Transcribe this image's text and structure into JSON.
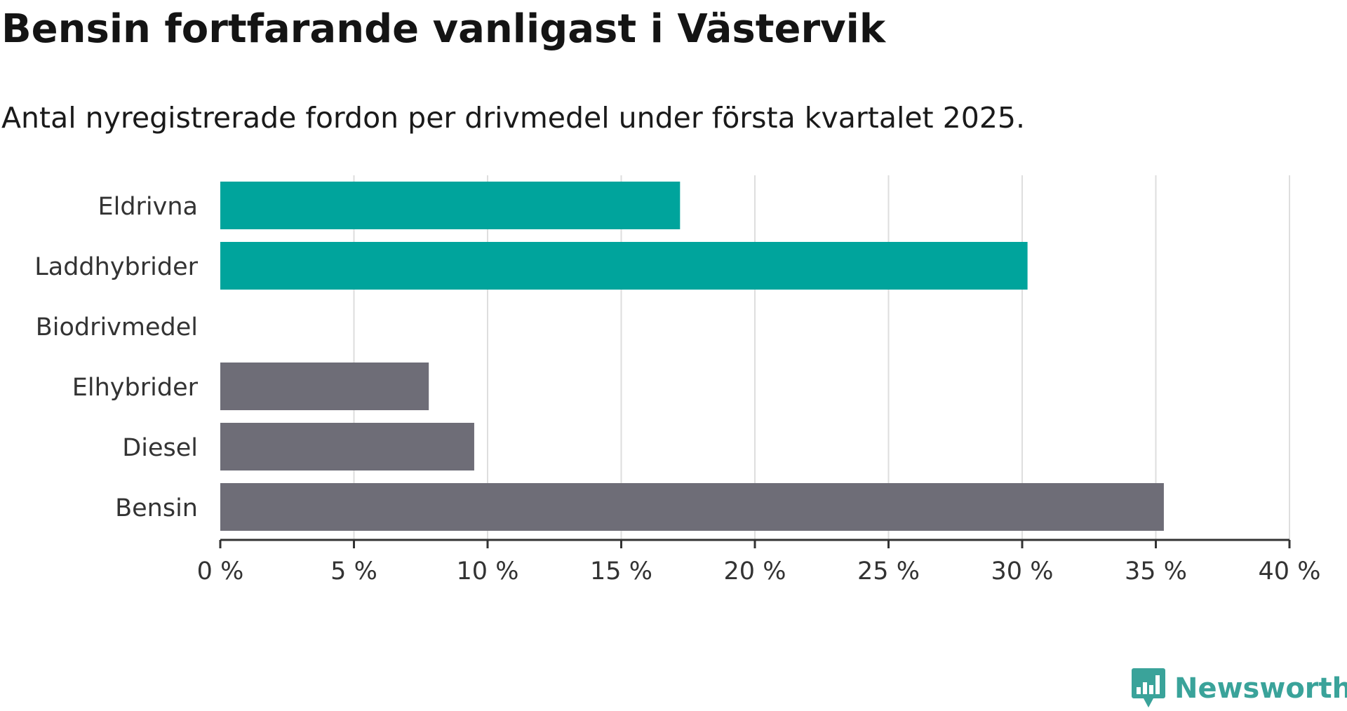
{
  "header": {
    "title": "Bensin fortfarande vanligast i Västervik",
    "subtitle": "Antal nyregistrerade fordon per drivmedel under första kvartalet 2025."
  },
  "brand": {
    "name": "Newsworthy",
    "icon": "newsworthy-logo-icon",
    "color": "#3aa39a"
  },
  "chart_data": {
    "type": "bar",
    "orientation": "horizontal",
    "title": "Bensin fortfarande vanligast i Västervik",
    "subtitle": "Antal nyregistrerade fordon per drivmedel under första kvartalet 2025.",
    "categories": [
      "Eldrivna",
      "Laddhybrider",
      "Biodrivmedel",
      "Elhybrider",
      "Diesel",
      "Bensin"
    ],
    "values": [
      17.2,
      30.2,
      0,
      7.8,
      9.5,
      35.3
    ],
    "colors": [
      "#00a49c",
      "#00a49c",
      "#00a49c",
      "#6e6d77",
      "#6e6d77",
      "#6e6d77"
    ],
    "xlim": [
      0,
      40
    ],
    "xticks": [
      0,
      5,
      10,
      15,
      20,
      25,
      30,
      35,
      40
    ],
    "xtick_labels": [
      "0 %",
      "5 %",
      "10 %",
      "15 %",
      "20 %",
      "25 %",
      "30 %",
      "35 %",
      "40 %"
    ],
    "xlabel": "",
    "ylabel": "",
    "grid": true,
    "legend": "none"
  }
}
